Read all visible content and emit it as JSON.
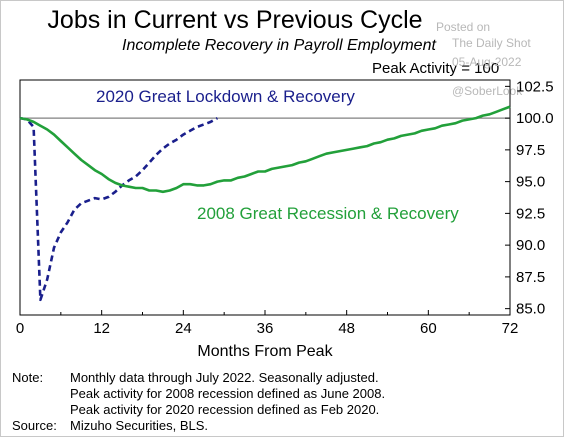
{
  "chart_data": {
    "type": "line",
    "title": "Jobs in Current vs Previous Cycle",
    "subtitle": "Incomplete Recovery in Payroll Employment",
    "ylabel_note": "Peak Activity = 100",
    "xlabel": "Months From Peak",
    "xlim": [
      0,
      72
    ],
    "ylim": [
      84.5,
      103.0
    ],
    "x_ticks": [
      0,
      12,
      24,
      36,
      48,
      60,
      72
    ],
    "y_ticks": [
      "85.0",
      "87.5",
      "90.0",
      "92.5",
      "95.0",
      "97.5",
      "100.0",
      "102.5"
    ],
    "grid": false,
    "reference_line": 100,
    "series": [
      {
        "name": "2020 Great Lockdown & Recovery",
        "color": "#1a1f8c",
        "style": "dashed",
        "x": [
          0,
          1,
          2,
          3,
          4,
          5,
          6,
          7,
          8,
          9,
          10,
          11,
          12,
          13,
          14,
          15,
          16,
          17,
          18,
          19,
          20,
          21,
          22,
          23,
          24,
          25,
          26,
          27,
          28,
          29
        ],
        "y": [
          100.0,
          99.9,
          99.3,
          85.7,
          87.3,
          89.8,
          91.0,
          91.8,
          92.8,
          93.3,
          93.5,
          93.7,
          93.6,
          93.8,
          94.2,
          94.7,
          95.1,
          95.4,
          95.9,
          96.5,
          97.1,
          97.6,
          98.0,
          98.3,
          98.7,
          99.0,
          99.3,
          99.5,
          99.7,
          100.0
        ]
      },
      {
        "name": "2008 Great Recession & Recovery",
        "color": "#22a03a",
        "style": "solid",
        "x": [
          0,
          1,
          2,
          3,
          4,
          5,
          6,
          7,
          8,
          9,
          10,
          11,
          12,
          13,
          14,
          15,
          16,
          17,
          18,
          19,
          20,
          21,
          22,
          23,
          24,
          25,
          26,
          27,
          28,
          29,
          30,
          31,
          32,
          33,
          34,
          35,
          36,
          37,
          38,
          39,
          40,
          41,
          42,
          43,
          44,
          45,
          46,
          47,
          48,
          49,
          50,
          51,
          52,
          53,
          54,
          55,
          56,
          57,
          58,
          59,
          60,
          61,
          62,
          63,
          64,
          65,
          66,
          67,
          68,
          69,
          70,
          71,
          72
        ],
        "y": [
          100.0,
          99.9,
          99.7,
          99.4,
          99.1,
          98.7,
          98.2,
          97.7,
          97.2,
          96.7,
          96.3,
          95.9,
          95.6,
          95.2,
          94.9,
          94.7,
          94.6,
          94.5,
          94.5,
          94.3,
          94.3,
          94.2,
          94.3,
          94.5,
          94.8,
          94.8,
          94.7,
          94.7,
          94.8,
          95.0,
          95.1,
          95.1,
          95.3,
          95.4,
          95.6,
          95.8,
          95.8,
          96.0,
          96.1,
          96.2,
          96.3,
          96.5,
          96.6,
          96.8,
          97.0,
          97.2,
          97.3,
          97.4,
          97.5,
          97.6,
          97.7,
          97.8,
          98.0,
          98.1,
          98.3,
          98.4,
          98.6,
          98.7,
          98.8,
          99.0,
          99.1,
          99.2,
          99.4,
          99.5,
          99.6,
          99.8,
          99.9,
          100.0,
          100.2,
          100.3,
          100.5,
          100.7,
          100.9
        ]
      }
    ],
    "annotations": [
      {
        "text": "2020 Great Lockdown & Recovery",
        "color": "#1a1f8c"
      },
      {
        "text": "2008 Great Recession & Recovery",
        "color": "#22a03a"
      }
    ]
  },
  "watermark": {
    "line1": "Posted on",
    "line2": "The Daily Shot",
    "line3": "05-Aug-2022",
    "line4": "@SoberLook"
  },
  "notes": {
    "note_label": "Note:",
    "note_lines": [
      "Monthly data through July 2022. Seasonally adjusted.",
      "Peak activity for 2008 recession defined as June 2008.",
      "Peak activity for 2020 recession defined as Feb 2020."
    ],
    "source_label": "Source:",
    "source_text": "Mizuho Securities, BLS."
  }
}
